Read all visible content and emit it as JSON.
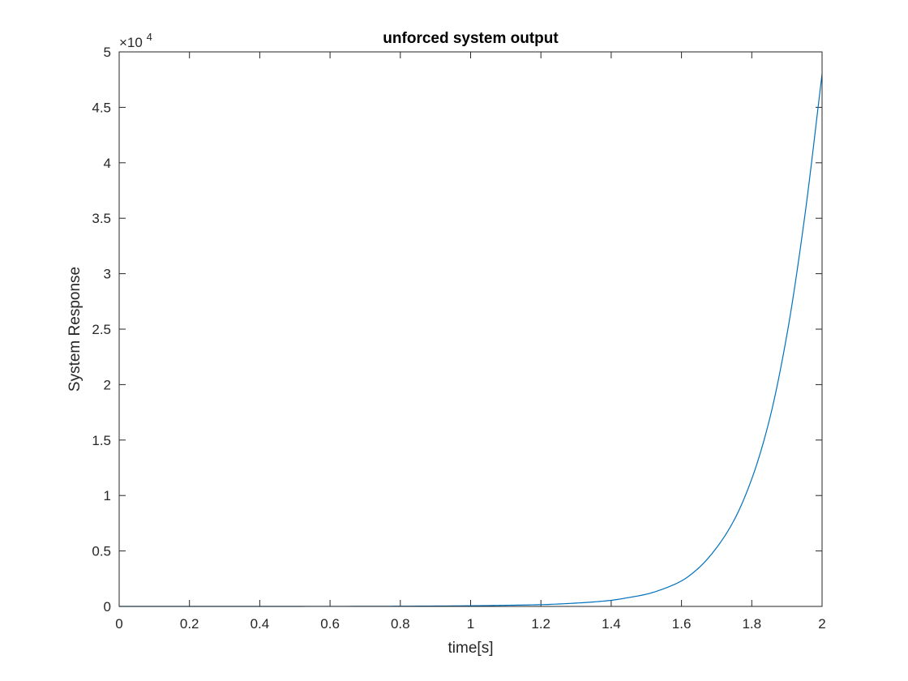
{
  "chart_data": {
    "type": "line",
    "title": "unforced system output",
    "xlabel": "time[s]",
    "ylabel": "System Response",
    "xlim": [
      0,
      2
    ],
    "ylim": [
      0,
      50000
    ],
    "y_exponent_base": "×10",
    "y_exponent_power": "4",
    "x_ticks": [
      0,
      0.2,
      0.4,
      0.6,
      0.8,
      1,
      1.2,
      1.4,
      1.6,
      1.8,
      2
    ],
    "x_tick_labels": [
      "0",
      "0.2",
      "0.4",
      "0.6",
      "0.8",
      "1",
      "1.2",
      "1.4",
      "1.6",
      "1.8",
      "2"
    ],
    "y_ticks": [
      0,
      5000,
      10000,
      15000,
      20000,
      25000,
      30000,
      35000,
      40000,
      45000,
      50000
    ],
    "y_tick_labels": [
      "0",
      "0.5",
      "1",
      "1.5",
      "2",
      "2.5",
      "3",
      "3.5",
      "4",
      "4.5",
      "5"
    ],
    "grid": false,
    "series": [
      {
        "color": "#0072BD",
        "x": [
          0,
          0.2,
          0.4,
          0.6,
          0.8,
          1.0,
          1.1,
          1.2,
          1.3,
          1.4,
          1.45,
          1.5,
          1.55,
          1.6,
          1.65,
          1.7,
          1.75,
          1.8,
          1.85,
          1.9,
          1.95,
          2.0
        ],
        "y": [
          0,
          0,
          1,
          4,
          18,
          60,
          100,
          160,
          300,
          550,
          800,
          1100,
          1600,
          2300,
          3500,
          5300,
          7800,
          11500,
          16800,
          24500,
          35000,
          48000
        ]
      }
    ]
  }
}
